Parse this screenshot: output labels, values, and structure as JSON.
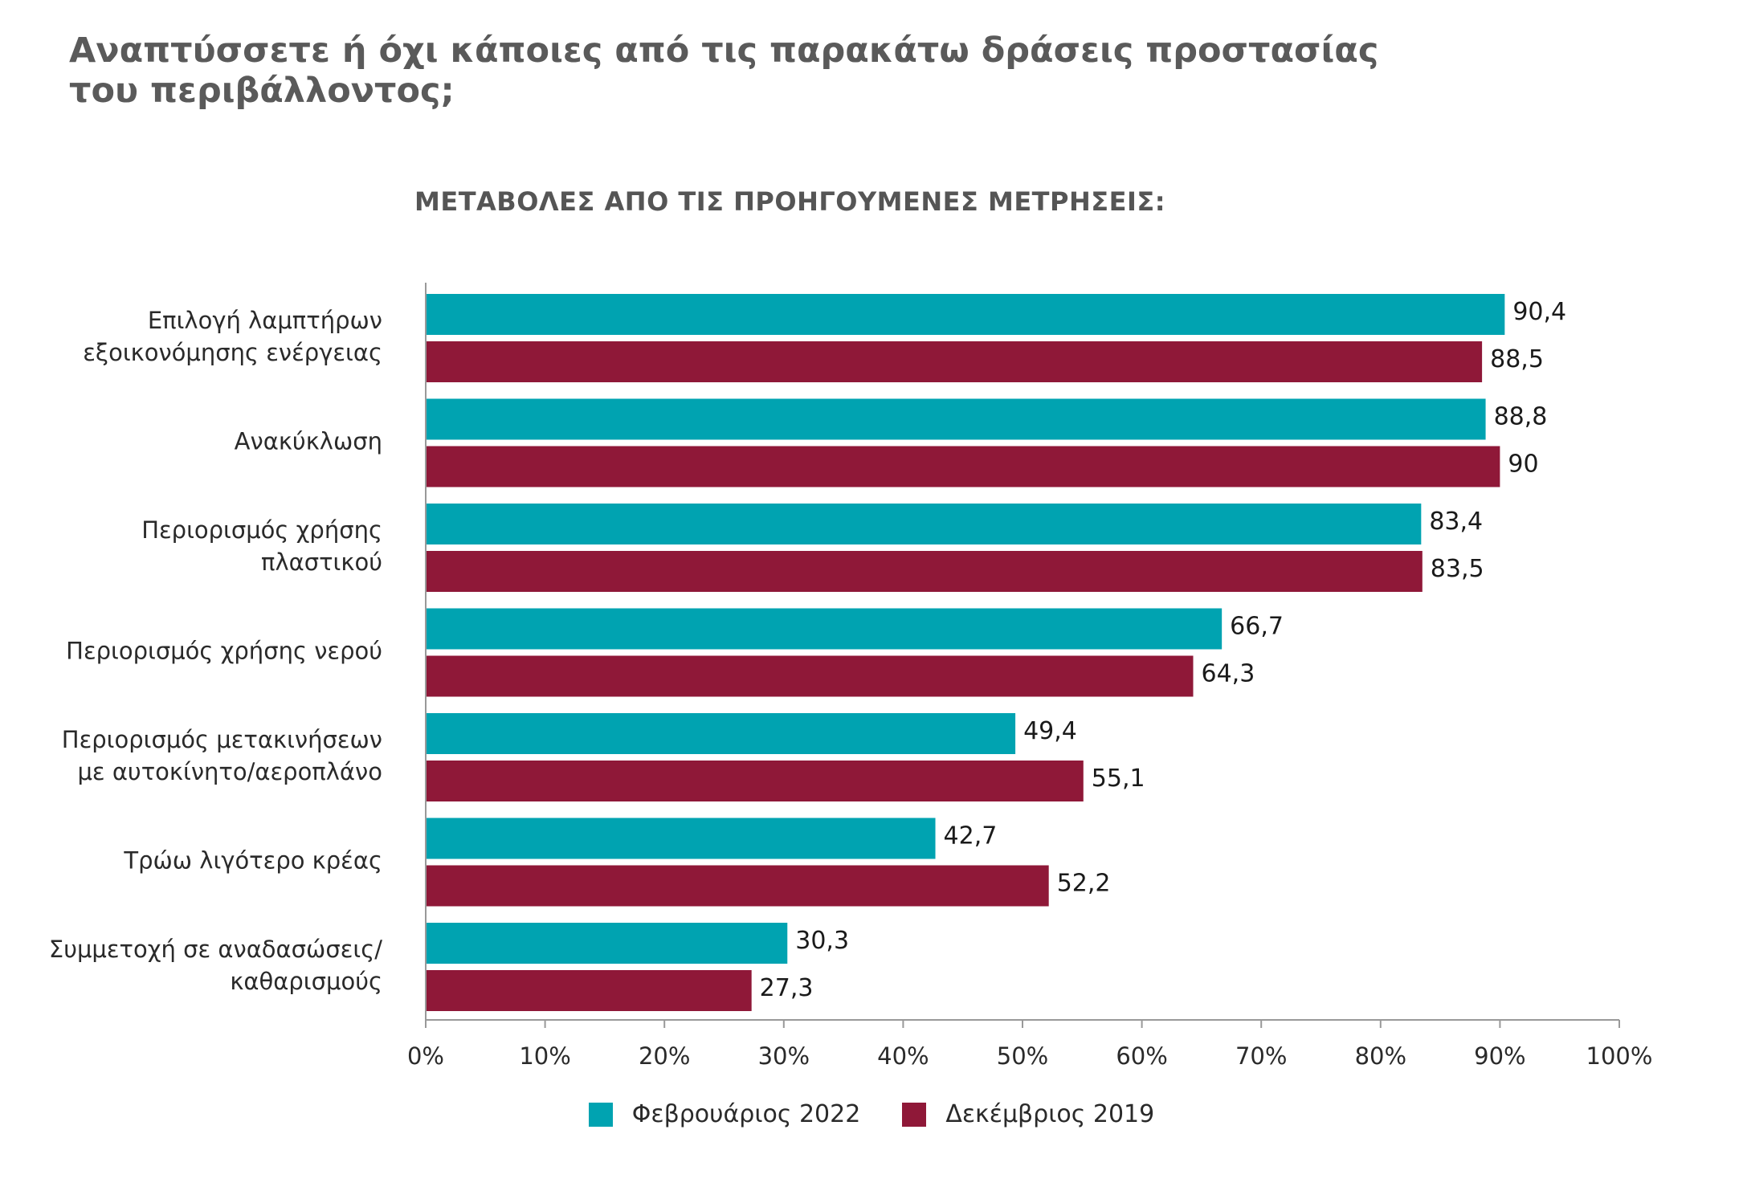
{
  "title": "Αναπτύσσετε ή όχι κάποιες από τις παρακάτω δράσεις προστασίας του περιβάλλοντος;",
  "subtitle": "ΜΕΤΑΒΟΛΕΣ ΑΠΟ ΤΙΣ ΠΡΟΗΓΟΥΜΕΝΕΣ ΜΕΤΡΗΣΕΙΣ:",
  "colors": {
    "series_1": "#00a3b1",
    "series_2": "#8f1838",
    "axis": "#999999"
  },
  "chart_data": {
    "type": "bar",
    "orientation": "horizontal",
    "categories": [
      [
        "Επιλογή λαμπτήρων",
        "εξοικονόμησης ενέργειας"
      ],
      [
        "Ανακύκλωση"
      ],
      [
        "Περιορισμός χρήσης",
        "πλαστικού"
      ],
      [
        "Περιορισμός χρήσης νερού"
      ],
      [
        "Περιορισμός μετακινήσεων",
        "με αυτοκίνητο/αεροπλάνο"
      ],
      [
        "Τρώω λιγότερο κρέας"
      ],
      [
        "Συμμετοχή σε αναδασώσεις/",
        "καθαρισμούς"
      ]
    ],
    "series": [
      {
        "name": "Φεβρουάριος 2022",
        "values": [
          90.4,
          88.8,
          83.4,
          66.7,
          49.4,
          42.7,
          30.3
        ],
        "labels": [
          "90,4",
          "88,8",
          "83,4",
          "66,7",
          "49,4",
          "42,7",
          "30,3"
        ]
      },
      {
        "name": "Δεκέμβριος 2019",
        "values": [
          88.5,
          90,
          83.5,
          64.3,
          55.1,
          52.2,
          27.3
        ],
        "labels": [
          "88,5",
          "90",
          "83,5",
          "64,3",
          "55,1",
          "52,2",
          "27,3"
        ]
      }
    ],
    "xlim": [
      0,
      100
    ],
    "xticks": [
      "0%",
      "10%",
      "20%",
      "30%",
      "40%",
      "50%",
      "60%",
      "70%",
      "80%",
      "90%",
      "100%"
    ],
    "grid": false,
    "legend": "bottom-center"
  }
}
